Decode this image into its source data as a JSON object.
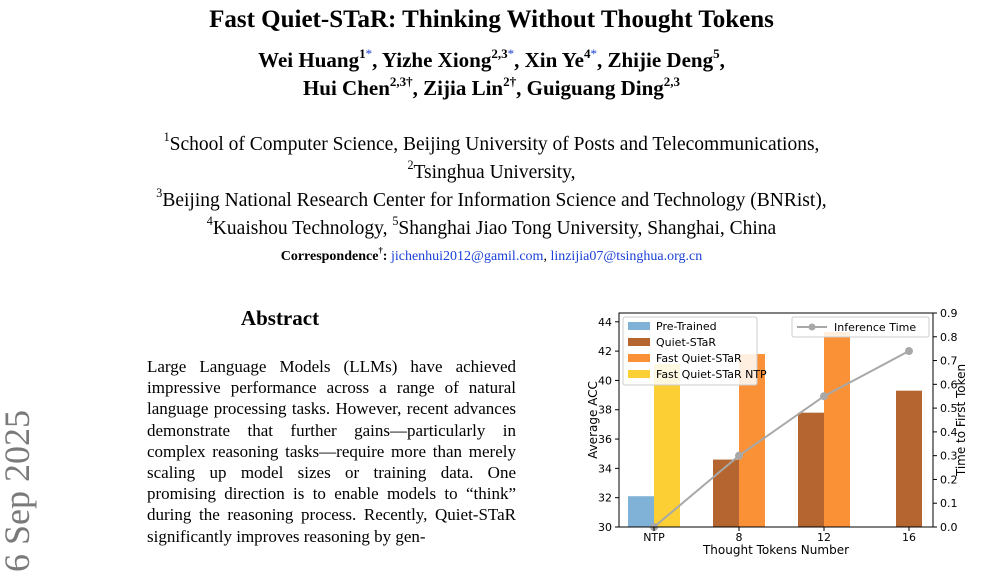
{
  "paper": {
    "title": "Fast Quiet-STaR: Thinking Without Thought Tokens",
    "authors": [
      [
        {
          "name": "Wei Huang",
          "sup": "1",
          "mark": "*"
        },
        {
          "name": "Yizhe Xiong",
          "sup": "2,3",
          "mark": "*"
        },
        {
          "name": "Xin Ye",
          "sup": "4",
          "mark": "*"
        },
        {
          "name": "Zhijie Deng",
          "sup": "5",
          "mark": ""
        }
      ],
      [
        {
          "name": "Hui Chen",
          "sup": "2,3†",
          "mark": ""
        },
        {
          "name": "Zijia Lin",
          "sup": "2†",
          "mark": ""
        },
        {
          "name": "Guiguang Ding",
          "sup": "2,3",
          "mark": ""
        }
      ]
    ],
    "affiliations": [
      {
        "sup": "1",
        "text": "School of Computer Science, Beijing University of Posts and Telecommunications,"
      },
      {
        "sup": "2",
        "text": "Tsinghua University,"
      },
      {
        "sup": "3",
        "text": "Beijing National Research Center for Information Science and Technology (BNRist),"
      },
      {
        "sup": "4",
        "text": "Kuaishou Technology, ",
        "sup2": "5",
        "text2": "Shanghai Jiao Tong University, Shanghai, China"
      }
    ],
    "correspondence_label": "Correspondence",
    "correspondence_mark": "†",
    "emails": [
      "jichenhui2012@gamil.com",
      "linzijia07@tsinghua.org.cn"
    ],
    "arxiv_stamp": "] 6 Sep 2025",
    "abstract_heading": "Abstract",
    "abstract_text": "Large Language Models (LLMs) have achieved impressive performance across a range of natural language processing tasks. However, recent advances demonstrate that further gains—particularly in complex reasoning tasks—require more than merely scaling up model sizes or training data. One promising direction is to enable models to “think” during the reasoning process. Recently, Quiet-STaR significantly improves reasoning by gen-"
  },
  "chart_data": {
    "type": "bar",
    "categories": [
      "NTP",
      "8",
      "12",
      "16"
    ],
    "xlabel": "Thought Tokens Number",
    "ylabel": "Average ACC",
    "y2label": "Time to First Token",
    "ylim": [
      30,
      44.6
    ],
    "y2lim": [
      0.0,
      0.9
    ],
    "yticks": [
      "30",
      "32",
      "34",
      "36",
      "38",
      "40",
      "42",
      "44"
    ],
    "y2ticks": [
      "0.0",
      "0.1",
      "0.2",
      "0.3",
      "0.4",
      "0.5",
      "0.6",
      "0.7",
      "0.8",
      "0.9"
    ],
    "series": [
      {
        "name": "Pre-Trained",
        "color": "#7fb2d6",
        "values": [
          32.1,
          null,
          null,
          null
        ]
      },
      {
        "name": "Quiet-STaR",
        "color": "#b5652f",
        "values": [
          null,
          34.6,
          37.8,
          39.3
        ]
      },
      {
        "name": "Fast Quiet-STaR",
        "color": "#fa9136",
        "values": [
          null,
          41.8,
          43.3,
          null
        ]
      },
      {
        "name": "Fast Quiet-STaR NTP",
        "color": "#fcd035",
        "values": [
          41.1,
          null,
          null,
          null
        ]
      }
    ],
    "line": {
      "name": "Inference Time",
      "color": "#a8a8a8",
      "values": [
        0.0,
        0.3,
        0.55,
        0.74
      ]
    },
    "legend_left": "top-left",
    "legend_right": "top-right",
    "grid": false
  }
}
